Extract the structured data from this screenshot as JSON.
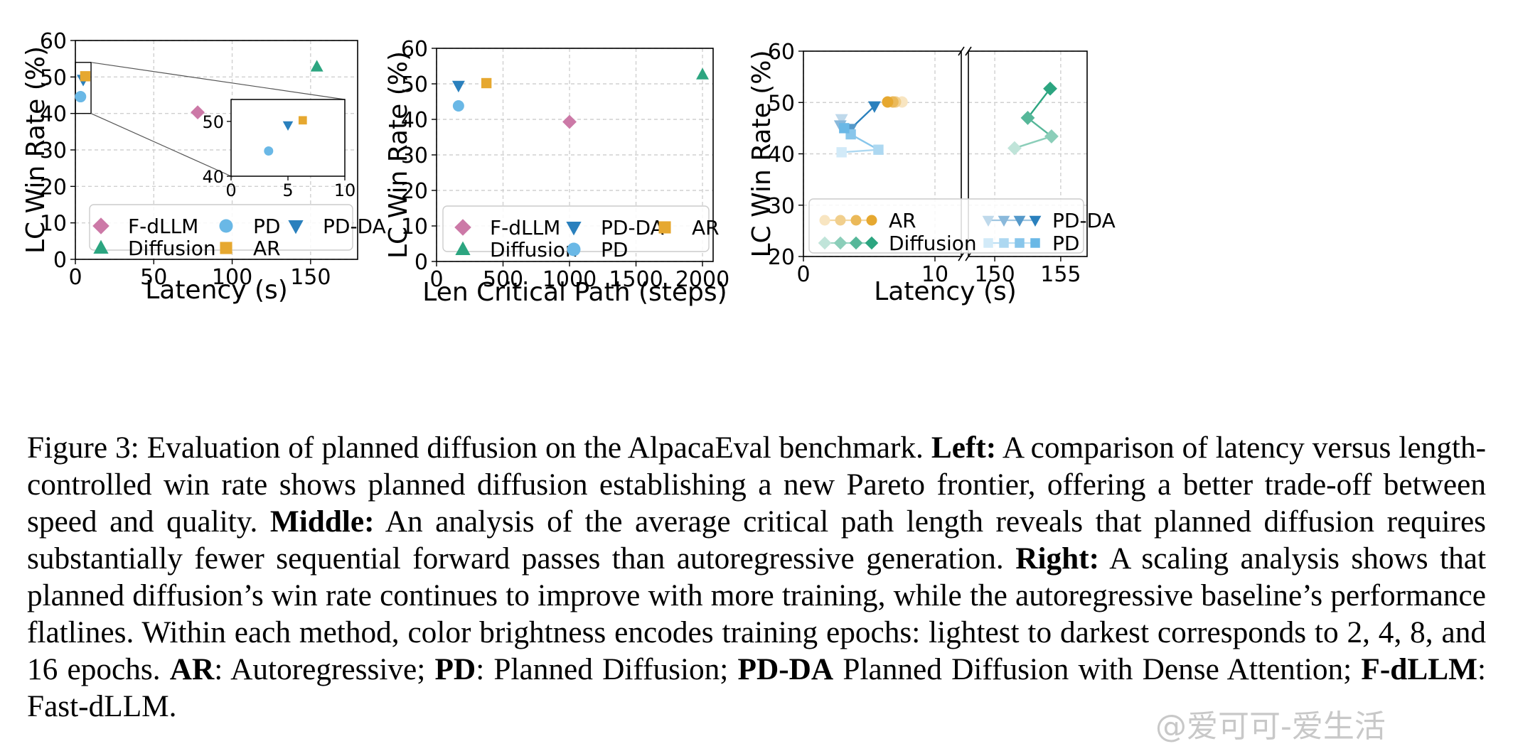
{
  "colors": {
    "fdllm": "#cc79a7",
    "diffusion": "#2ca580",
    "pd": "#6ab8e6",
    "pdda": "#2a80bd",
    "ar": "#e6a830"
  },
  "chart_data": [
    {
      "id": "left",
      "type": "scatter",
      "xlabel": "Latency (s)",
      "ylabel": "LC Win Rate (%)",
      "xlim": [
        0,
        180
      ],
      "ylim": [
        0,
        60
      ],
      "xticks": [
        "0",
        "50",
        "100",
        "150"
      ],
      "yticks": [
        "0",
        "10",
        "20",
        "30",
        "40",
        "50",
        "60"
      ],
      "grid": true,
      "legend_position": "bottom",
      "legend": [
        "F-dLLM",
        "PD",
        "PD-DA",
        "Diffusion",
        "AR"
      ],
      "series": [
        {
          "name": "F-dLLM",
          "marker": "diamond",
          "color": "#cc79a7",
          "points": [
            [
              78,
              40.3
            ]
          ]
        },
        {
          "name": "Diffusion",
          "marker": "triangle",
          "color": "#2ca580",
          "points": [
            [
              154,
              52.8
            ]
          ]
        },
        {
          "name": "PD",
          "marker": "circle",
          "color": "#6ab8e6",
          "points": [
            [
              3.3,
              44.6
            ]
          ]
        },
        {
          "name": "PD-DA",
          "marker": "triangle-down",
          "color": "#2a80bd",
          "points": [
            [
              5,
              49.3
            ]
          ]
        },
        {
          "name": "AR",
          "marker": "square",
          "color": "#e6a830",
          "points": [
            [
              6.3,
              50.2
            ]
          ]
        }
      ],
      "inset": {
        "xlim": [
          0,
          10
        ],
        "ylim": [
          40,
          54
        ],
        "xticks": [
          "0",
          "5",
          "10"
        ],
        "yticks": [
          "40",
          "50"
        ]
      }
    },
    {
      "id": "middle",
      "type": "scatter",
      "xlabel": "Len Critical Path (steps)",
      "ylabel": "LC Win Rate (%)",
      "xlim": [
        0,
        2080
      ],
      "ylim": [
        0,
        60
      ],
      "xticks": [
        "0",
        "500",
        "1000",
        "1500",
        "2000"
      ],
      "yticks": [
        "0",
        "10",
        "20",
        "30",
        "40",
        "50",
        "60"
      ],
      "grid": true,
      "legend_position": "bottom",
      "legend": [
        "F-dLLM",
        "PD-DA",
        "AR",
        "Diffusion",
        "PD"
      ],
      "series": [
        {
          "name": "F-dLLM",
          "marker": "diamond",
          "color": "#cc79a7",
          "points": [
            [
              1000,
              39.3
            ]
          ]
        },
        {
          "name": "Diffusion",
          "marker": "triangle",
          "color": "#2ca580",
          "points": [
            [
              2000,
              52.6
            ]
          ]
        },
        {
          "name": "PD",
          "marker": "circle",
          "color": "#6ab8e6",
          "points": [
            [
              165,
              43.8
            ]
          ]
        },
        {
          "name": "PD-DA",
          "marker": "triangle-down",
          "color": "#2a80bd",
          "points": [
            [
              165,
              49.5
            ]
          ]
        },
        {
          "name": "AR",
          "marker": "square",
          "color": "#e6a830",
          "points": [
            [
              375,
              50.2
            ]
          ]
        }
      ]
    },
    {
      "id": "right",
      "type": "line",
      "xlabel": "Latency (s)",
      "ylabel": "LC Win Rate (%)",
      "xlim_left": [
        0,
        12
      ],
      "xlim_right": [
        148,
        157
      ],
      "ylim": [
        20,
        60
      ],
      "xticks_left": [
        "0",
        "10"
      ],
      "xticks_right": [
        "150",
        "155"
      ],
      "yticks": [
        "20",
        "30",
        "40",
        "50",
        "60"
      ],
      "grid": true,
      "broken_axis": true,
      "legend_position": "bottom",
      "legend": [
        "AR",
        "PD-DA",
        "Diffusion",
        "PD"
      ],
      "series": [
        {
          "name": "AR",
          "marker": "circle",
          "color": "#e6a830",
          "epochs": [
            2,
            4,
            8,
            16
          ],
          "points": [
            [
              7.5,
              50.1
            ],
            [
              7.0,
              50.1
            ],
            [
              6.8,
              50.1
            ],
            [
              6.4,
              50.1
            ]
          ]
        },
        {
          "name": "Diffusion",
          "marker": "diamond",
          "color": "#2ca580",
          "epochs": [
            2,
            4,
            8,
            16
          ],
          "points": [
            [
              151.5,
              41.1
            ],
            [
              154.3,
              43.4
            ],
            [
              152.5,
              47.0
            ],
            [
              154.2,
              52.7
            ]
          ]
        },
        {
          "name": "PD-DA",
          "marker": "triangle-down",
          "color": "#2a80bd",
          "epochs": [
            2,
            4,
            8,
            16
          ],
          "points": [
            [
              2.9,
              46.8
            ],
            [
              2.8,
              45.6
            ],
            [
              3.6,
              44.9
            ],
            [
              5.4,
              49.3
            ]
          ]
        },
        {
          "name": "PD",
          "marker": "square",
          "color": "#6ab8e6",
          "epochs": [
            2,
            4,
            8,
            16
          ],
          "points": [
            [
              2.9,
              40.3
            ],
            [
              5.7,
              40.8
            ],
            [
              3.6,
              43.8
            ],
            [
              3.1,
              45.0
            ]
          ]
        }
      ]
    }
  ],
  "caption": {
    "p1_label": "Figure 3:",
    "p1_text": "Evaluation of planned diffusion on the AlpacaEval benchmark.",
    "left_label": "Left:",
    "left_text": "A comparison of latency versus length-controlled win rate shows planned diffusion establishing a new Pareto frontier, offering a better trade-off between speed and quality.",
    "middle_label": "Middle:",
    "middle_text": "An analysis of the average critical path length reveals that planned diffusion requires substantially fewer sequential forward passes than autoregressive generation.",
    "right_label": "Right:",
    "right_text": "A scaling analysis shows that planned diffusion’s win rate continues to improve with more training, while the autoregressive baseline’s performance flatlines.  Within each method, color brightness encodes training epochs: lightest to darkest corresponds to 2, 4, 8, and 16 epochs.",
    "ar_abbr": "AR",
    "ar_text": ": Autoregressive;",
    "pd_abbr": "PD",
    "pd_text": ": Planned Diffusion;",
    "pdda_abbr": "PD-DA",
    "pdda_text": "Planned Diffusion with Dense Attention;",
    "fdllm_abbr": "F-dLLM",
    "fdllm_text": ": Fast-dLLM."
  },
  "watermark": "@爱可可-爱生活"
}
